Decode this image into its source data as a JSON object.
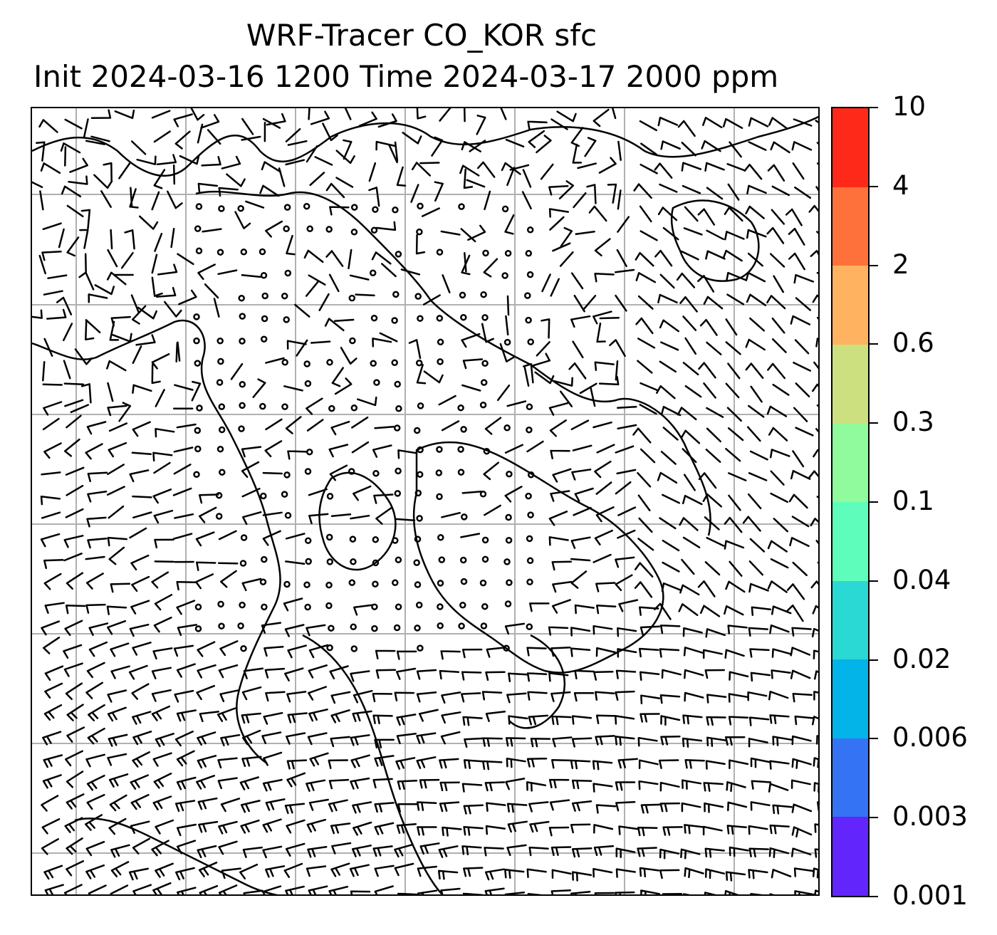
{
  "title": {
    "line1": "WRF-Tracer CO_KOR sfc",
    "line2": "Init 2024-03-16 1200 Time 2024-03-17 2000 ppm"
  },
  "colorbar": {
    "levels": [
      "0.001",
      "0.003",
      "0.006",
      "0.02",
      "0.04",
      "0.1",
      "0.3",
      "0.6",
      "2",
      "4",
      "10"
    ],
    "colors": [
      "#6226fc",
      "#3473f4",
      "#03b4e8",
      "#2ad8d4",
      "#5efdbc",
      "#8ffb9c",
      "#cce07f",
      "#ffb360",
      "#ff713b",
      "#ff2919"
    ]
  },
  "map": {
    "gridlines": 7,
    "calm_symbol": "circle",
    "barb_symbol": "wind-barb"
  }
}
